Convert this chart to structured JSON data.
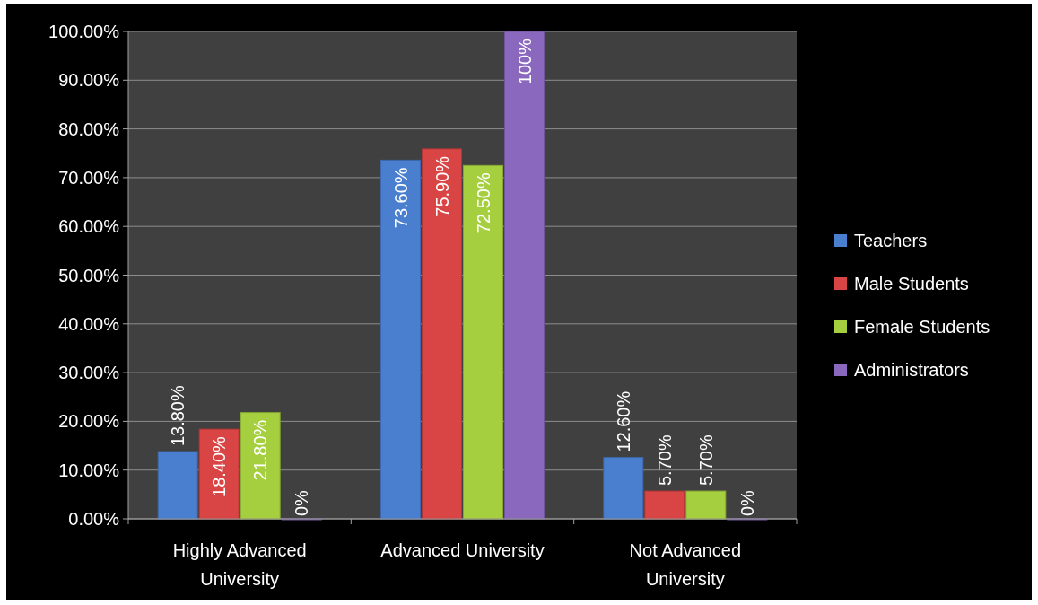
{
  "chart_data": {
    "type": "bar",
    "categories": [
      "Highly Advanced University",
      "Advanced University",
      "Not Advanced University"
    ],
    "series": [
      {
        "name": "Teachers",
        "color": "#4a7fd0",
        "values": [
          13.8,
          73.6,
          12.6
        ],
        "value_labels": [
          "13.80%",
          "73.60%",
          "12.60%"
        ]
      },
      {
        "name": "Male Students",
        "color": "#d94444",
        "values": [
          18.4,
          75.9,
          5.7
        ],
        "value_labels": [
          "18.40%",
          "75.90%",
          "5.70%"
        ]
      },
      {
        "name": "Female Students",
        "color": "#a6cf3f",
        "values": [
          21.8,
          72.5,
          5.7
        ],
        "value_labels": [
          "21.80%",
          "72.50%",
          "5.70%"
        ]
      },
      {
        "name": "Administrators",
        "color": "#8a68bd",
        "values": [
          0,
          100,
          0
        ],
        "value_labels": [
          "0%",
          "100%",
          "0%"
        ]
      }
    ],
    "ylim": [
      0,
      100
    ],
    "yticks": [
      {
        "value": 0,
        "label": "0.00%"
      },
      {
        "value": 10,
        "label": "10.00%"
      },
      {
        "value": 20,
        "label": "20.00%"
      },
      {
        "value": 30,
        "label": "30.00%"
      },
      {
        "value": 40,
        "label": "40.00%"
      },
      {
        "value": 50,
        "label": "50.00%"
      },
      {
        "value": 60,
        "label": "60.00%"
      },
      {
        "value": 70,
        "label": "70.00%"
      },
      {
        "value": 80,
        "label": "80.00%"
      },
      {
        "value": 90,
        "label": "90.00%"
      },
      {
        "value": 100,
        "label": "100.00%"
      }
    ],
    "grid": "y",
    "legend": "right"
  }
}
